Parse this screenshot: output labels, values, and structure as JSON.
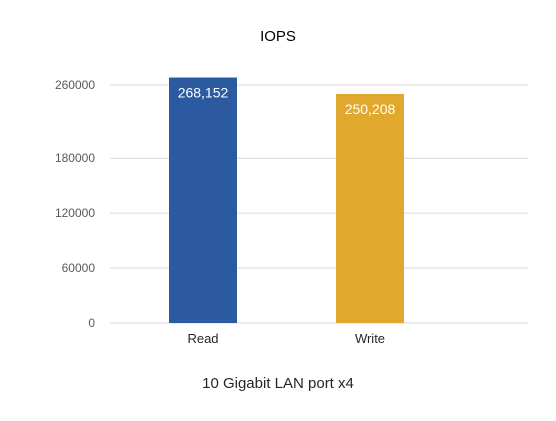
{
  "chart_data": {
    "type": "bar",
    "title": "IOPS",
    "xlabel": "10 Gigabit LAN port x4",
    "ylabel": "",
    "categories": [
      "Read",
      "Write"
    ],
    "values": [
      268152,
      250208
    ],
    "data_labels": [
      "268,152",
      "250,208"
    ],
    "colors": [
      "#2b5aa1",
      "#e0a82c"
    ],
    "ylim": [
      0,
      300000
    ],
    "yticks": [
      0,
      60000,
      120000,
      180000,
      260000
    ],
    "ytick_labels": [
      "0",
      "60000",
      "120000",
      "180000",
      "260000"
    ],
    "grid": true,
    "legend": "none"
  }
}
